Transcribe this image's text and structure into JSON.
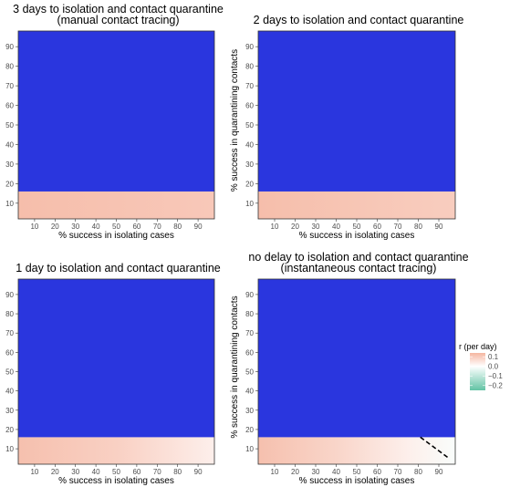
{
  "colors": {
    "masked_fill": "#2a36de",
    "low": "#62c3a4",
    "mid": "#ffffff",
    "high": "#f5b6a1",
    "panel_border": "#333333",
    "tick": "#333333",
    "contour": "#000000"
  },
  "chart_data": [
    {
      "type": "heatmap",
      "title_lines": [
        "3 days to isolation and contact quarantine",
        "(manual contact tracing)"
      ],
      "xlabel": "% success in isolating cases",
      "ylabel": "% success in quarantining contacts",
      "x_ticks": [
        10,
        20,
        30,
        40,
        50,
        60,
        70,
        80,
        90
      ],
      "y_ticks": [
        10,
        20,
        30,
        40,
        50,
        60,
        70,
        80,
        90
      ],
      "xlim": [
        2,
        98
      ],
      "ylim": [
        2,
        98
      ],
      "unmasked_y_range": [
        2,
        16
      ],
      "masked_y_range": [
        16,
        98
      ],
      "r_at_x": [
        {
          "x": 2,
          "r": 0.125
        },
        {
          "x": 50,
          "r": 0.115
        },
        {
          "x": 98,
          "r": 0.105
        }
      ],
      "contour": []
    },
    {
      "type": "heatmap",
      "title_lines": [
        "2 days to isolation and contact quarantine"
      ],
      "xlabel": "% success in isolating cases",
      "ylabel": "% success in quarantining contacts",
      "x_ticks": [
        10,
        20,
        30,
        40,
        50,
        60,
        70,
        80,
        90
      ],
      "y_ticks": [
        10,
        20,
        30,
        40,
        50,
        60,
        70,
        80,
        90
      ],
      "xlim": [
        2,
        98
      ],
      "ylim": [
        2,
        98
      ],
      "unmasked_y_range": [
        2,
        16
      ],
      "masked_y_range": [
        16,
        98
      ],
      "r_at_x": [
        {
          "x": 2,
          "r": 0.125
        },
        {
          "x": 50,
          "r": 0.11
        },
        {
          "x": 98,
          "r": 0.095
        }
      ],
      "contour": []
    },
    {
      "type": "heatmap",
      "title_lines": [
        "1 day to isolation and contact quarantine"
      ],
      "xlabel": "% success in isolating cases",
      "ylabel": "% success in quarantining contacts",
      "x_ticks": [
        10,
        20,
        30,
        40,
        50,
        60,
        70,
        80,
        90
      ],
      "y_ticks": [
        10,
        20,
        30,
        40,
        50,
        60,
        70,
        80,
        90
      ],
      "xlim": [
        2,
        98
      ],
      "ylim": [
        2,
        98
      ],
      "unmasked_y_range": [
        2,
        16
      ],
      "masked_y_range": [
        16,
        98
      ],
      "r_at_x": [
        {
          "x": 2,
          "r": 0.12
        },
        {
          "x": 50,
          "r": 0.09
        },
        {
          "x": 98,
          "r": 0.03
        }
      ],
      "contour": []
    },
    {
      "type": "heatmap",
      "title_lines": [
        "no delay to isolation and contact quarantine",
        "(instantaneous contact tracing)"
      ],
      "xlabel": "% success in isolating cases",
      "ylabel": "% success in quarantining contacts",
      "x_ticks": [
        10,
        20,
        30,
        40,
        50,
        60,
        70,
        80,
        90
      ],
      "y_ticks": [
        10,
        20,
        30,
        40,
        50,
        60,
        70,
        80,
        90
      ],
      "xlim": [
        2,
        98
      ],
      "ylim": [
        2,
        98
      ],
      "unmasked_y_range": [
        2,
        16
      ],
      "masked_y_range": [
        16,
        98
      ],
      "r_at_x": [
        {
          "x": 2,
          "r": 0.12
        },
        {
          "x": 40,
          "r": 0.08
        },
        {
          "x": 75,
          "r": 0.03
        },
        {
          "x": 98,
          "r": -0.01
        }
      ],
      "contour": [
        {
          "x": 81,
          "y": 16
        },
        {
          "x": 95,
          "y": 5
        }
      ]
    }
  ],
  "legend": {
    "title": "r (per day)",
    "labels": [
      "0.1",
      "0.0",
      "−0.1",
      "−0.2"
    ],
    "values": [
      0.1,
      0.0,
      -0.1,
      -0.2
    ],
    "range": [
      -0.25,
      0.14
    ]
  }
}
